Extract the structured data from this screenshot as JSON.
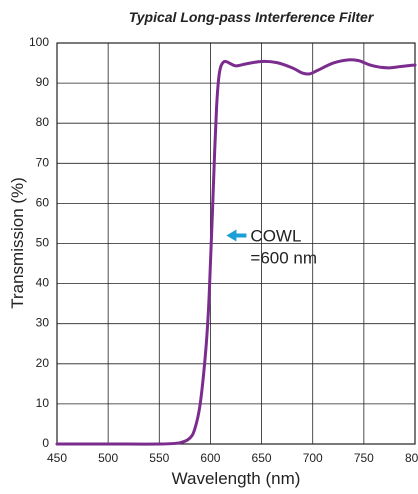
{
  "chart_data": {
    "type": "line",
    "title": "Typical Long-pass Interference Filter",
    "xlabel": "Wavelength (nm)",
    "ylabel": "Transmission (%)",
    "xlim": [
      450,
      800
    ],
    "ylim": [
      0,
      100
    ],
    "x_ticks": [
      "450",
      "500",
      "550",
      "600",
      "650",
      "700",
      "750",
      "800"
    ],
    "y_ticks": [
      "0",
      "10",
      "20",
      "30",
      "40",
      "50",
      "60",
      "70",
      "80",
      "90",
      "100"
    ],
    "grid": true,
    "series": [
      {
        "color": "#7b2d8e",
        "x": [
          450,
          500,
          550,
          570,
          580,
          585,
          590,
          595,
          598,
          600,
          602,
          604,
          606,
          608,
          610,
          613,
          616,
          620,
          625,
          635,
          650,
          665,
          680,
          690,
          697,
          705,
          720,
          735,
          745,
          755,
          765,
          775,
          785,
          795,
          800
        ],
        "y": [
          0,
          0,
          0,
          0.3,
          1.5,
          4,
          10,
          22,
          33,
          45,
          58,
          72,
          84,
          91,
          94,
          95.3,
          95.3,
          94.8,
          94.3,
          94.8,
          95.4,
          95.1,
          93.8,
          92.5,
          92.3,
          93.2,
          95,
          95.8,
          95.6,
          94.6,
          94,
          93.8,
          94.1,
          94.4,
          94.5
        ]
      }
    ],
    "annotations": [
      {
        "line1": "COWL",
        "line2": "=600 nm",
        "x": 600,
        "y": 53,
        "arrow_color": "#1a9fd6"
      }
    ]
  }
}
